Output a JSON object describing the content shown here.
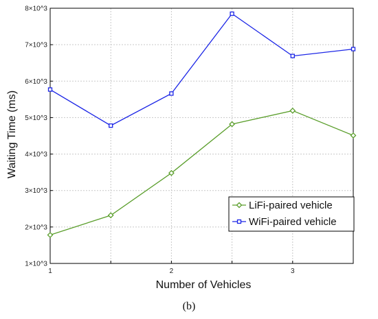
{
  "caption": "(b)",
  "colors": {
    "lifi": "#5a9e2b",
    "wifi": "#1a24e6",
    "grid": "#c8c8c8",
    "axis": "#000000"
  },
  "chart_data": {
    "type": "line",
    "title": "",
    "xlabel": "Number of Vehicles",
    "ylabel": "Waiting Time (ms)",
    "x": [
      1,
      1.5,
      2,
      2.5,
      3,
      3.5
    ],
    "xlim": [
      1,
      3.5
    ],
    "ylim": [
      1000,
      8000
    ],
    "xticks": [
      {
        "value": 1,
        "label": "1"
      },
      {
        "value": 2,
        "label": "2"
      },
      {
        "value": 3,
        "label": "3"
      }
    ],
    "yticks": [
      {
        "value": 1000,
        "label": "1×10^3"
      },
      {
        "value": 2000,
        "label": "2×10^3"
      },
      {
        "value": 3000,
        "label": "3×10^3"
      },
      {
        "value": 4000,
        "label": "4×10^3"
      },
      {
        "value": 5000,
        "label": "5×10^3"
      },
      {
        "value": 6000,
        "label": "6×10^3"
      },
      {
        "value": 7000,
        "label": "7×10^3"
      },
      {
        "value": 8000,
        "label": "8×10^3"
      }
    ],
    "grid": true,
    "legend_position": "lower-right",
    "series": [
      {
        "name": "LiFi-paired vehicle",
        "color": "#5a9e2b",
        "marker": "diamond",
        "values": [
          1780,
          2320,
          3480,
          4820,
          5190,
          4510
        ]
      },
      {
        "name": "WiFi-paired vehicle",
        "color": "#1a24e6",
        "marker": "square",
        "values": [
          5770,
          4780,
          5660,
          7850,
          6690,
          6880
        ]
      }
    ]
  }
}
